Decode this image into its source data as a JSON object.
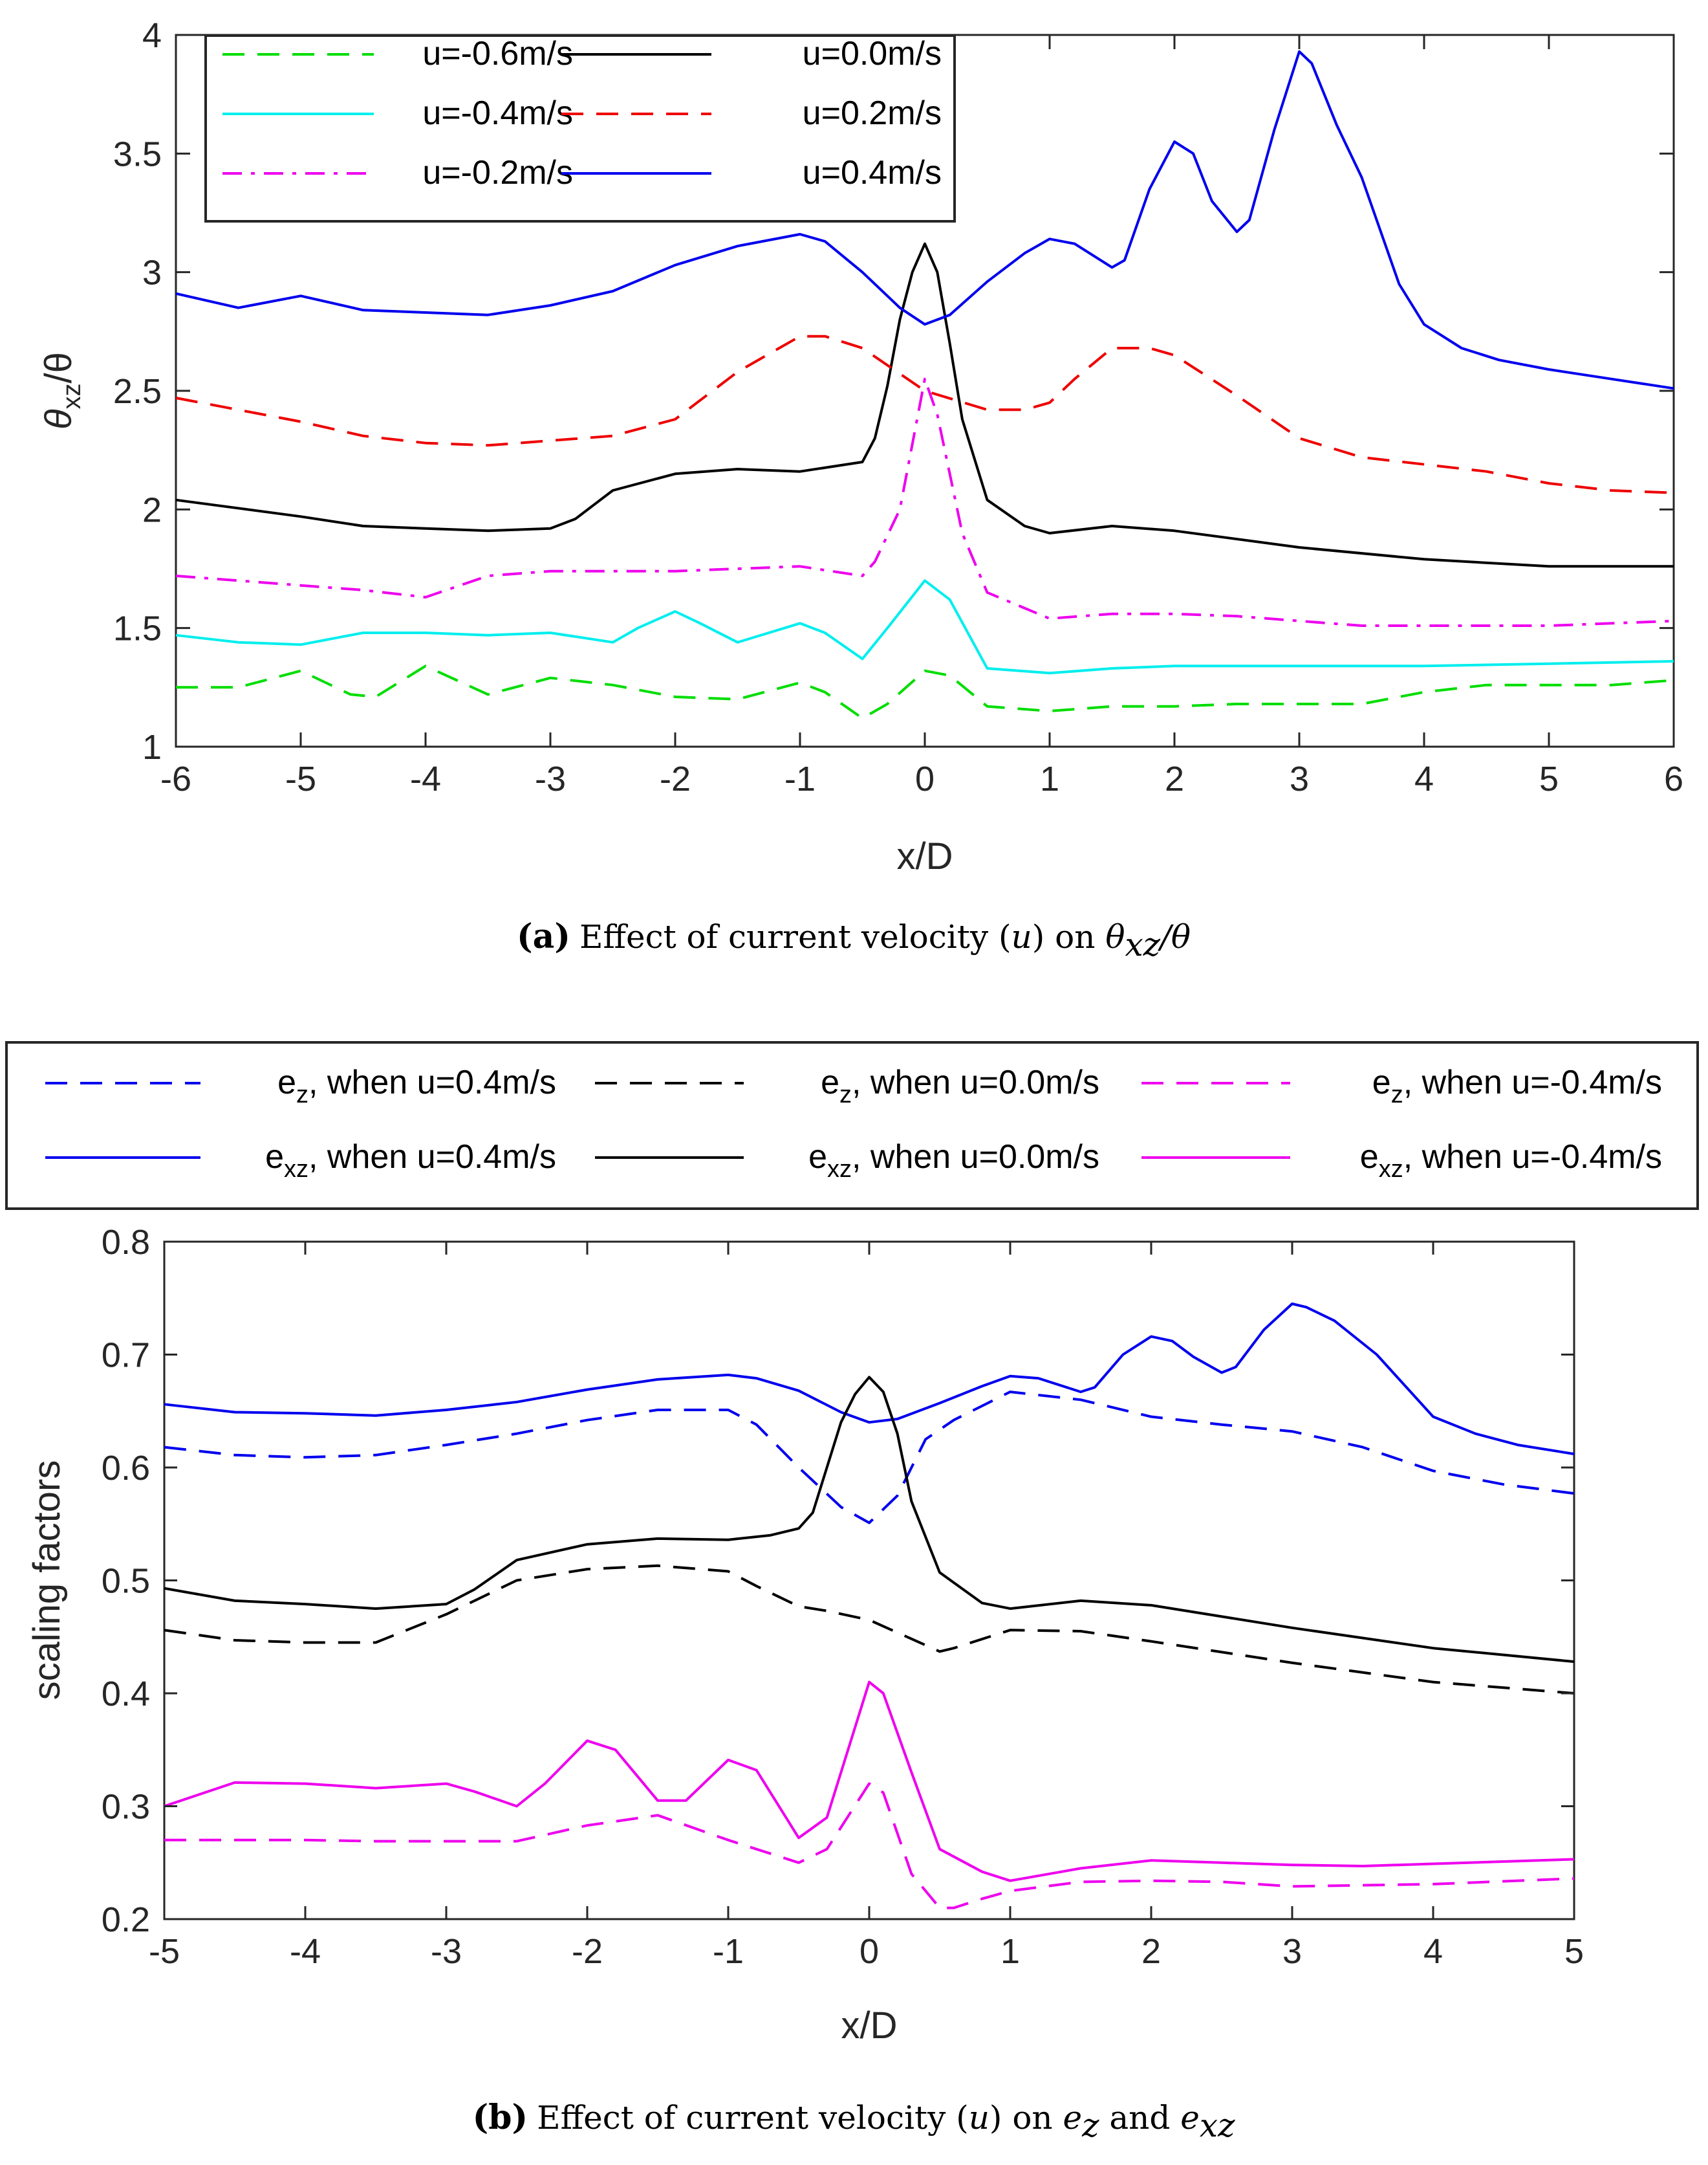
{
  "chart_data": [
    {
      "type": "line",
      "xlabel": "x/D",
      "ylabel": "θxz/θ",
      "ylabel_main": "θ",
      "ylabel_sub": "xz",
      "ylabel_tail": "/θ",
      "xlim": [
        -6,
        6
      ],
      "ylim": [
        1,
        4
      ],
      "xticks": [
        "-6",
        "-5",
        "-4",
        "-3",
        "-2",
        "-1",
        "0",
        "1",
        "2",
        "3",
        "4",
        "5",
        "6"
      ],
      "yticks": [
        "1",
        "1.5",
        "2",
        "2.5",
        "3",
        "3.5",
        "4"
      ],
      "legend_position": "top-left",
      "caption": {
        "label": "(a)",
        "text": "Effect of current velocity (u) on θxz/θ",
        "pre": "Effect of current velocity (",
        "var_u": "u",
        "mid": ") on ",
        "theta": "θ",
        "sub": "xz",
        "tail": "/θ"
      },
      "series": [
        {
          "name": "u=-0.6m/s",
          "color": "#00dd00",
          "style": "dashed",
          "x": [
            -6,
            -5.5,
            -5,
            -4.6,
            -4.4,
            -4,
            -3.5,
            -3,
            -2.5,
            -2,
            -1.5,
            -1,
            -0.8,
            -0.5,
            -0.3,
            0,
            0.2,
            0.5,
            1,
            1.5,
            2,
            2.5,
            3,
            3.5,
            4,
            4.5,
            5,
            5.5,
            6
          ],
          "values": [
            1.25,
            1.25,
            1.32,
            1.22,
            1.21,
            1.34,
            1.22,
            1.29,
            1.26,
            1.21,
            1.2,
            1.27,
            1.23,
            1.12,
            1.18,
            1.32,
            1.3,
            1.17,
            1.15,
            1.17,
            1.17,
            1.18,
            1.18,
            1.18,
            1.23,
            1.26,
            1.26,
            1.26,
            1.28
          ]
        },
        {
          "name": "u=-0.4m/s",
          "color": "#00eeee",
          "style": "solid",
          "x": [
            -6,
            -5.5,
            -5,
            -4.5,
            -4,
            -3.5,
            -3,
            -2.5,
            -2.3,
            -2,
            -1.8,
            -1.5,
            -1,
            -0.8,
            -0.5,
            -0.3,
            0,
            0.2,
            0.5,
            1,
            1.5,
            2,
            3,
            4,
            5,
            6
          ],
          "values": [
            1.47,
            1.44,
            1.43,
            1.48,
            1.48,
            1.47,
            1.48,
            1.44,
            1.5,
            1.57,
            1.52,
            1.44,
            1.52,
            1.48,
            1.37,
            1.5,
            1.7,
            1.62,
            1.33,
            1.31,
            1.33,
            1.34,
            1.34,
            1.34,
            1.35,
            1.36
          ]
        },
        {
          "name": "u=-0.2m/s",
          "color": "#ee00ee",
          "style": "dashdot",
          "x": [
            -6,
            -5,
            -4.5,
            -4,
            -3.5,
            -3,
            -2,
            -1,
            -0.5,
            -0.4,
            -0.2,
            0,
            0.1,
            0.3,
            0.5,
            1,
            1.5,
            2,
            2.5,
            3,
            3.5,
            4,
            5,
            6
          ],
          "values": [
            1.72,
            1.68,
            1.66,
            1.63,
            1.72,
            1.74,
            1.74,
            1.76,
            1.72,
            1.78,
            2.0,
            2.55,
            2.4,
            1.9,
            1.65,
            1.54,
            1.56,
            1.56,
            1.55,
            1.53,
            1.51,
            1.51,
            1.51,
            1.53
          ]
        },
        {
          "name": "u=0.0m/s",
          "color": "#000000",
          "style": "solid",
          "x": [
            -6,
            -5,
            -4.5,
            -4,
            -3.5,
            -3,
            -2.8,
            -2.5,
            -2,
            -1.5,
            -1,
            -0.5,
            -0.4,
            -0.3,
            -0.2,
            -0.1,
            0,
            0.1,
            0.2,
            0.3,
            0.5,
            0.8,
            1,
            1.5,
            2,
            3,
            4,
            5,
            6
          ],
          "values": [
            2.04,
            1.97,
            1.93,
            1.92,
            1.91,
            1.92,
            1.96,
            2.08,
            2.15,
            2.17,
            2.16,
            2.2,
            2.3,
            2.52,
            2.8,
            3.0,
            3.12,
            3.0,
            2.7,
            2.38,
            2.04,
            1.93,
            1.9,
            1.93,
            1.91,
            1.84,
            1.79,
            1.76,
            1.76
          ]
        },
        {
          "name": "u=0.2m/s",
          "color": "#ee0000",
          "style": "dashed",
          "x": [
            -6,
            -5,
            -4.5,
            -4,
            -3.5,
            -3,
            -2.5,
            -2,
            -1.5,
            -1,
            -0.8,
            -0.5,
            0,
            0.5,
            0.8,
            1,
            1.2,
            1.5,
            1.8,
            2,
            2.5,
            3,
            3.5,
            4,
            4.5,
            5,
            5.5,
            6
          ],
          "values": [
            2.47,
            2.37,
            2.31,
            2.28,
            2.27,
            2.29,
            2.31,
            2.38,
            2.58,
            2.73,
            2.73,
            2.68,
            2.5,
            2.42,
            2.42,
            2.45,
            2.55,
            2.68,
            2.68,
            2.65,
            2.48,
            2.3,
            2.22,
            2.19,
            2.16,
            2.11,
            2.08,
            2.07
          ]
        },
        {
          "name": "u=0.4m/s",
          "color": "#0000ee",
          "style": "solid",
          "x": [
            -6,
            -5.5,
            -5,
            -4.5,
            -4,
            -3.5,
            -3,
            -2.5,
            -2,
            -1.5,
            -1,
            -0.8,
            -0.5,
            -0.2,
            0,
            0.2,
            0.5,
            0.8,
            1,
            1.2,
            1.5,
            1.6,
            1.8,
            2,
            2.15,
            2.3,
            2.5,
            2.6,
            2.8,
            3,
            3.1,
            3.3,
            3.5,
            3.8,
            4,
            4.3,
            4.6,
            5,
            5.5,
            6
          ],
          "values": [
            2.91,
            2.85,
            2.9,
            2.84,
            2.83,
            2.82,
            2.86,
            2.92,
            3.03,
            3.11,
            3.16,
            3.13,
            3.0,
            2.85,
            2.78,
            2.82,
            2.96,
            3.08,
            3.14,
            3.12,
            3.02,
            3.05,
            3.35,
            3.55,
            3.5,
            3.3,
            3.17,
            3.22,
            3.6,
            3.93,
            3.88,
            3.62,
            3.4,
            2.95,
            2.78,
            2.68,
            2.63,
            2.59,
            2.55,
            2.51
          ]
        }
      ]
    },
    {
      "type": "line",
      "xlabel": "x/D",
      "ylabel": "scaling factors",
      "xlim": [
        -5,
        5
      ],
      "ylim": [
        0.2,
        0.8
      ],
      "xticks": [
        "-5",
        "-4",
        "-3",
        "-2",
        "-1",
        "0",
        "1",
        "2",
        "3",
        "4",
        "5"
      ],
      "yticks": [
        "0.2",
        "0.3",
        "0.4",
        "0.5",
        "0.6",
        "0.7",
        "0.8"
      ],
      "legend_position": "top-outside",
      "caption": {
        "label": "(b)",
        "text": "Effect of current velocity (u) on ez and exz",
        "pre": "Effect of current velocity (",
        "var_u": "u",
        "mid": ") on ",
        "e1": "e",
        "e1_sub": "z",
        "and": " and ",
        "e2": "e",
        "e2_sub": "xz"
      },
      "series": [
        {
          "name": "ez, when u=0.4m/s",
          "sym": "e",
          "sub": "z",
          "label_tail": ",  when u=0.4m/s",
          "color": "#0000ee",
          "style": "dashed",
          "x": [
            -5,
            -4.5,
            -4,
            -3.5,
            -3,
            -2.5,
            -2,
            -1.5,
            -1,
            -0.8,
            -0.5,
            -0.2,
            0,
            0.2,
            0.4,
            0.6,
            1,
            1.5,
            2,
            2.5,
            3,
            3.5,
            4,
            4.5,
            5
          ],
          "values": [
            0.618,
            0.611,
            0.609,
            0.611,
            0.62,
            0.63,
            0.642,
            0.651,
            0.651,
            0.638,
            0.6,
            0.565,
            0.551,
            0.575,
            0.625,
            0.642,
            0.667,
            0.66,
            0.645,
            0.638,
            0.632,
            0.618,
            0.597,
            0.585,
            0.577
          ]
        },
        {
          "name": "ez, when u=0.0m/s",
          "sym": "e",
          "sub": "z",
          "label_tail": ",  when u=0.0m/s",
          "color": "#000000",
          "style": "dashed",
          "x": [
            -5,
            -4.5,
            -4,
            -3.5,
            -3,
            -2.5,
            -2,
            -1.5,
            -1,
            -0.8,
            -0.5,
            -0.3,
            0,
            0.5,
            0.6,
            1,
            1.5,
            2,
            3,
            4,
            5
          ],
          "values": [
            0.456,
            0.447,
            0.445,
            0.445,
            0.47,
            0.5,
            0.51,
            0.513,
            0.508,
            0.495,
            0.477,
            0.473,
            0.465,
            0.437,
            0.44,
            0.456,
            0.455,
            0.446,
            0.427,
            0.41,
            0.4
          ]
        },
        {
          "name": "ez, when u=-0.4m/s",
          "sym": "e",
          "sub": "z",
          "label_tail": ",  when u=-0.4m/s",
          "color": "#ee00ee",
          "style": "dashed",
          "x": [
            -5,
            -4.5,
            -4,
            -3.5,
            -3,
            -2.5,
            -2,
            -1.5,
            -1,
            -0.8,
            -0.5,
            -0.3,
            0,
            0.1,
            0.3,
            0.5,
            0.6,
            0.8,
            1,
            1.5,
            2,
            2.5,
            3,
            4,
            5
          ],
          "values": [
            0.27,
            0.27,
            0.27,
            0.269,
            0.269,
            0.269,
            0.283,
            0.292,
            0.27,
            0.262,
            0.25,
            0.262,
            0.32,
            0.312,
            0.24,
            0.21,
            0.21,
            0.218,
            0.225,
            0.233,
            0.234,
            0.233,
            0.229,
            0.231,
            0.236
          ]
        },
        {
          "name": "exz, when u=0.4m/s",
          "sym": "e",
          "sub": "xz",
          "label_tail": ", when u=0.4m/s",
          "color": "#0000ee",
          "style": "solid",
          "x": [
            -5,
            -4.5,
            -4,
            -3.5,
            -3,
            -2.5,
            -2,
            -1.5,
            -1,
            -0.8,
            -0.5,
            -0.2,
            0,
            0.2,
            0.5,
            0.8,
            1,
            1.2,
            1.5,
            1.6,
            1.8,
            2,
            2.15,
            2.3,
            2.5,
            2.6,
            2.8,
            3,
            3.1,
            3.3,
            3.6,
            4,
            4.3,
            4.6,
            5
          ],
          "values": [
            0.656,
            0.649,
            0.648,
            0.646,
            0.651,
            0.658,
            0.669,
            0.678,
            0.682,
            0.679,
            0.668,
            0.649,
            0.64,
            0.643,
            0.657,
            0.672,
            0.681,
            0.679,
            0.667,
            0.671,
            0.7,
            0.716,
            0.712,
            0.698,
            0.684,
            0.689,
            0.722,
            0.745,
            0.742,
            0.73,
            0.7,
            0.645,
            0.63,
            0.62,
            0.612
          ]
        },
        {
          "name": "exz, when u=0.0m/s",
          "sym": "e",
          "sub": "xz",
          "label_tail": ", when u=0.0m/s",
          "color": "#000000",
          "style": "solid",
          "x": [
            -5,
            -4.5,
            -4,
            -3.5,
            -3,
            -2.8,
            -2.5,
            -2,
            -1.5,
            -1,
            -0.7,
            -0.5,
            -0.4,
            -0.3,
            -0.2,
            -0.1,
            0,
            0.1,
            0.2,
            0.3,
            0.5,
            0.8,
            1,
            1.5,
            2,
            3,
            4,
            5
          ],
          "values": [
            0.493,
            0.482,
            0.479,
            0.475,
            0.479,
            0.492,
            0.518,
            0.532,
            0.537,
            0.536,
            0.54,
            0.546,
            0.56,
            0.6,
            0.64,
            0.665,
            0.68,
            0.667,
            0.63,
            0.57,
            0.507,
            0.48,
            0.475,
            0.482,
            0.478,
            0.458,
            0.44,
            0.428
          ]
        },
        {
          "name": "exz, when u=-0.4m/s",
          "sym": "e",
          "sub": "xz",
          "label_tail": ", when u=-0.4m/s",
          "color": "#ee00ee",
          "style": "solid",
          "x": [
            -5,
            -4.5,
            -4,
            -3.5,
            -3,
            -2.8,
            -2.5,
            -2.3,
            -2,
            -1.8,
            -1.5,
            -1.3,
            -1,
            -0.8,
            -0.5,
            -0.3,
            0,
            0.1,
            0.3,
            0.5,
            0.8,
            1,
            1.5,
            2,
            2.5,
            3,
            3.5,
            4,
            5
          ],
          "values": [
            0.3,
            0.321,
            0.32,
            0.316,
            0.32,
            0.313,
            0.3,
            0.32,
            0.358,
            0.35,
            0.305,
            0.305,
            0.341,
            0.332,
            0.272,
            0.29,
            0.41,
            0.4,
            0.33,
            0.262,
            0.242,
            0.234,
            0.245,
            0.252,
            0.25,
            0.248,
            0.247,
            0.249,
            0.253
          ]
        }
      ]
    }
  ]
}
